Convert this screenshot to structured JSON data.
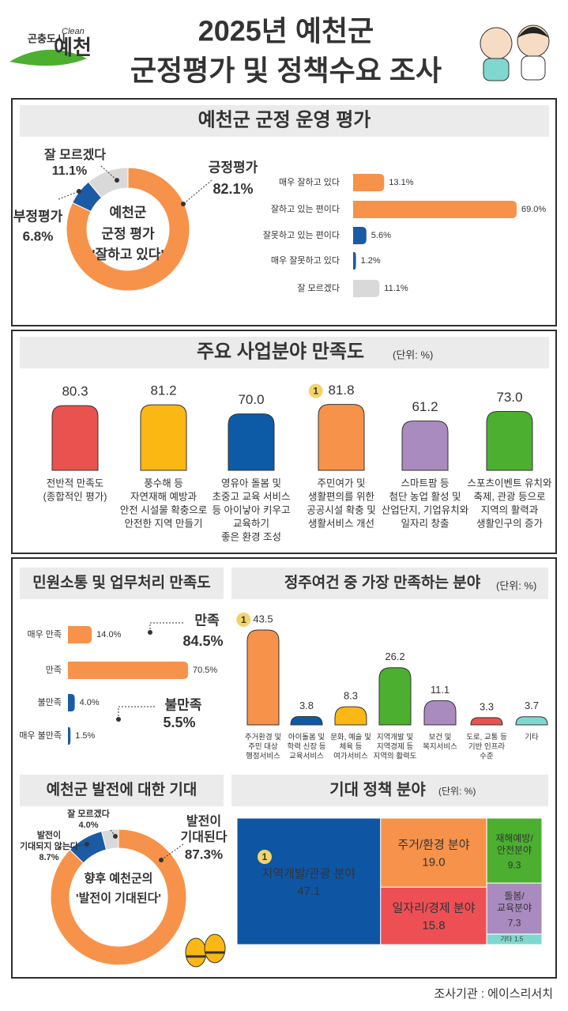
{
  "header": {
    "logo": {
      "small": "곤충도시",
      "clean": "Clean",
      "main": "예천"
    },
    "title": [
      "2025년 예천군",
      "군정평가 및 정책수요 조사"
    ]
  },
  "chart_data": [
    {
      "type": "donut",
      "title": "예천군 군정 운영 평가",
      "center_text": [
        "예천군",
        "군정 평가",
        "'잘하고 있다'"
      ],
      "categories": [
        [
          "긍정평가"
        ],
        [
          "부정평가"
        ],
        [
          "잘 모르겠다"
        ]
      ],
      "values": [
        82.1,
        6.8,
        11.1
      ],
      "value_labels": [
        "82.1%",
        "6.8%",
        "11.1%"
      ],
      "colors": [
        "#f7924a",
        "#1b5aa5",
        "#d9d9d9"
      ]
    },
    {
      "type": "hbar",
      "categories": [
        "매우 잘하고 있다",
        "잘하고 있는 편이다",
        "잘못하고 있는 편이다",
        "매우 잘못하고 있다",
        "잘 모르겠다"
      ],
      "values": [
        13.1,
        69.0,
        5.6,
        1.2,
        11.1
      ],
      "value_labels": [
        "13.1%",
        "69.0%",
        "5.6%",
        "1.2%",
        "11.1%"
      ],
      "colors": [
        "#f7924a",
        "#f7924a",
        "#1b5aa5",
        "#1b5aa5",
        "#d9d9d9"
      ]
    },
    {
      "type": "bar",
      "title": "주요 사업분야 만족도",
      "unit": "(단위: %)",
      "rank_label": "1",
      "categories": [
        [
          "전반적 만족도",
          "(종합적인 평가)"
        ],
        [
          "풍수해 등",
          "자연재해 예방과",
          "안전 시설물 확충으로",
          "안전한 지역 만들기"
        ],
        [
          "영유아 돌봄 및",
          "초중고 교육 서비스",
          "등 아이낳아 키우고",
          "교육하기",
          "좋은 환경 조성"
        ],
        [
          "주민여가 및",
          "생활편의를 위한",
          "공공시설 확충 및",
          "생활서비스 개선"
        ],
        [
          "스마트팜 등",
          "첨단 농업 활성 및",
          "산업단지, 기업유치와",
          "일자리 창출"
        ],
        [
          "스포츠이벤트 유치와",
          "축제, 관광 등으로",
          "지역의 활력과",
          "생활인구의 증가"
        ]
      ],
      "values": [
        80.3,
        81.2,
        70.0,
        81.8,
        61.2,
        73.0
      ],
      "value_labels": [
        "80.3",
        "81.2",
        "70.0",
        "81.8",
        "61.2",
        "73.0"
      ],
      "colors": [
        "#e9524f",
        "#fbb713",
        "#0d5aa7",
        "#f7924a",
        "#a98bbf",
        "#4caf2f"
      ]
    },
    {
      "type": "hbar",
      "title": "민원소통 및 업무처리 만족도",
      "categories": [
        "매우 만족",
        "만족",
        "불만족",
        "매우 불만족"
      ],
      "values": [
        14.0,
        70.5,
        4.0,
        1.5
      ],
      "value_labels": [
        "14.0%",
        "70.5%",
        "4.0%",
        "1.5%"
      ],
      "colors": [
        "#f7924a",
        "#f7924a",
        "#1b5aa5",
        "#1b5aa5"
      ],
      "annotations": [
        {
          "label": "만족",
          "value": "84.5%"
        },
        {
          "label": "불만족",
          "value": "5.5%"
        }
      ]
    },
    {
      "type": "bar",
      "title": "정주여건 중 가장 만족하는 분야",
      "unit": "(단위: %)",
      "rank_label": "1",
      "categories": [
        [
          "주거환경 및",
          "주민 대상",
          "행정서비스"
        ],
        [
          "아이돌봄 및",
          "학력 신장 등",
          "교육서비스"
        ],
        [
          "문화, 예술 및",
          "체육 등",
          "여가서비스"
        ],
        [
          "지역개발 및",
          "지역경제 등",
          "지역의 활력도"
        ],
        [
          "보건 및",
          "복지서비스"
        ],
        [
          "도로, 교통 등",
          "기반 인프라",
          "수준"
        ],
        [
          "기타"
        ]
      ],
      "values": [
        43.5,
        3.8,
        8.3,
        26.2,
        11.1,
        3.3,
        3.7
      ],
      "colors": [
        "#f7924a",
        "#0d5aa7",
        "#fbb713",
        "#4caf2f",
        "#a98bbf",
        "#e9524f",
        "#7fd8d0"
      ]
    },
    {
      "type": "donut",
      "title": "예천군 발전에 대한 기대",
      "center_text": [
        "향후 예천군의",
        "'발전이 기대된다'"
      ],
      "categories": [
        [
          "발전이",
          "기대된다"
        ],
        [
          "발전이",
          "기대되지 않는다"
        ],
        [
          "잘 모르겠다"
        ]
      ],
      "values": [
        87.3,
        8.7,
        4.0
      ],
      "value_labels": [
        "87.3%",
        "8.7%",
        "4.0%"
      ],
      "colors": [
        "#f7924a",
        "#1b5aa5",
        "#d9d9d9"
      ]
    },
    {
      "type": "treemap",
      "title": "기대 정책 분야",
      "unit": "(단위: %)",
      "rank_label": "1",
      "categories": [
        [
          "지역개발/관광 분야"
        ],
        [
          "주거/환경 분야"
        ],
        [
          "일자리/경제 분야"
        ],
        [
          "재해예방/",
          "안전분야"
        ],
        [
          "돌봄/",
          "교육분야"
        ],
        [
          "기타"
        ]
      ],
      "values": [
        47.1,
        19.0,
        15.8,
        9.3,
        7.3,
        1.5
      ],
      "value_labels": [
        "47.1",
        "19.0",
        "15.8",
        "9.3",
        "7.3",
        "1.5"
      ],
      "colors": [
        "#0e56a4",
        "#f7924a",
        "#ee4f55",
        "#4caf2f",
        "#a98bbf",
        "#7fd8d0"
      ]
    }
  ],
  "footer": "조사기관 : 에이스리서치"
}
